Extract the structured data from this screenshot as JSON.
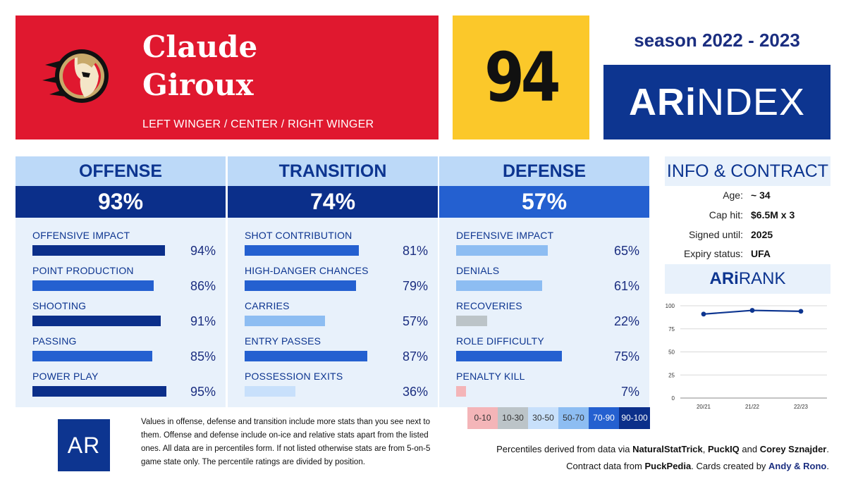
{
  "player": {
    "first_name": "Claude",
    "last_name": "Giroux",
    "positions": "LEFT WINGER / CENTER / RIGHT WINGER",
    "rating": "94"
  },
  "season": "season 2022 - 2023",
  "brand": {
    "prefix": "ARi",
    "suffix": "NDEX"
  },
  "colors": {
    "header_red": "#e0182f",
    "rating_yellow": "#fbc82a",
    "navy": "#0d3590",
    "bar_90_100": "#0b2f8a",
    "bar_70_90": "#2460d0",
    "bar_50_70": "#8dbdf2",
    "bar_30_50": "#c8e0fb",
    "bar_10_30": "#bcc4c8",
    "bar_0_10": "#f4b5b8"
  },
  "categories": [
    {
      "key": "offense",
      "title": "OFFENSE",
      "score": "93%",
      "stats": [
        {
          "label": "OFFENSIVE IMPACT",
          "value": 94,
          "display": "94%"
        },
        {
          "label": "POINT PRODUCTION",
          "value": 86,
          "display": "86%"
        },
        {
          "label": "SHOOTING",
          "value": 91,
          "display": "91%"
        },
        {
          "label": "PASSING",
          "value": 85,
          "display": "85%"
        },
        {
          "label": "POWER PLAY",
          "value": 95,
          "display": "95%"
        }
      ]
    },
    {
      "key": "transition",
      "title": "TRANSITION",
      "score": "74%",
      "stats": [
        {
          "label": "SHOT CONTRIBUTION",
          "value": 81,
          "display": "81%"
        },
        {
          "label": "HIGH-DANGER CHANCES",
          "value": 79,
          "display": "79%"
        },
        {
          "label": "CARRIES",
          "value": 57,
          "display": "57%"
        },
        {
          "label": "ENTRY PASSES",
          "value": 87,
          "display": "87%"
        },
        {
          "label": "POSSESSION EXITS",
          "value": 36,
          "display": "36%"
        }
      ]
    },
    {
      "key": "defense",
      "title": "DEFENSE",
      "score": "57%",
      "stats": [
        {
          "label": "DEFENSIVE IMPACT",
          "value": 65,
          "display": "65%"
        },
        {
          "label": "DENIALS",
          "value": 61,
          "display": "61%"
        },
        {
          "label": "RECOVERIES",
          "value": 22,
          "display": "22%"
        },
        {
          "label": "ROLE DIFFICULTY",
          "value": 75,
          "display": "75%"
        },
        {
          "label": "PENALTY KILL",
          "value": 7,
          "display": "7%"
        }
      ]
    }
  ],
  "info": {
    "title": "INFO & CONTRACT",
    "rows": [
      {
        "label": "Age:",
        "value": "~ 34"
      },
      {
        "label": "Cap hit:",
        "value": "$6.5M x 3"
      },
      {
        "label": "Signed until:",
        "value": "2025"
      },
      {
        "label": "Expiry status:",
        "value": "UFA"
      }
    ]
  },
  "rank": {
    "prefix": "ARi",
    "suffix": "RANK"
  },
  "chart_data": {
    "type": "line",
    "title": "ARiRANK",
    "x": [
      "20/21",
      "21/22",
      "22/23"
    ],
    "series": [
      {
        "values": [
          91,
          95,
          94
        ]
      }
    ],
    "ylim": [
      0,
      100
    ],
    "yticks": [
      0,
      25,
      50,
      75,
      100
    ],
    "grid": true,
    "line_color": "#0d3590"
  },
  "legend": [
    {
      "label": "0-10",
      "color": "#f4b5b8",
      "text_color": "#333333"
    },
    {
      "label": "10-30",
      "color": "#bcc4c8",
      "text_color": "#333333"
    },
    {
      "label": "30-50",
      "color": "#c8e0fb",
      "text_color": "#333333"
    },
    {
      "label": "50-70",
      "color": "#8dbdf2",
      "text_color": "#333333"
    },
    {
      "label": "70-90",
      "color": "#2460d0",
      "text_color": "#ffffff"
    },
    {
      "label": "90-100",
      "color": "#0b2f8a",
      "text_color": "#ffffff"
    }
  ],
  "footer": {
    "logo_text": "AR",
    "notes": "Values in offense, defense and transition include more stats than you see next to them. Offense and defense include on-ice and relative stats apart from the listed ones. All data are in percentiles form. If not listed otherwise stats are from 5-on-5 game state only. The percentile ratings are divided by position.",
    "credit_line1_pre": "Percentiles derived from data via ",
    "credit_source1": "NaturalStatTrick",
    "credit_sep1": ", ",
    "credit_source2": "PuckIQ",
    "credit_sep2": " and ",
    "credit_source3": "Corey Sznajder",
    "credit_end1": ".",
    "credit_line2_pre": "Contract data from ",
    "credit_source4": "PuckPedia",
    "credit_mid2": ". Cards created by ",
    "credit_authors": "Andy & Rono",
    "credit_end2": "."
  }
}
